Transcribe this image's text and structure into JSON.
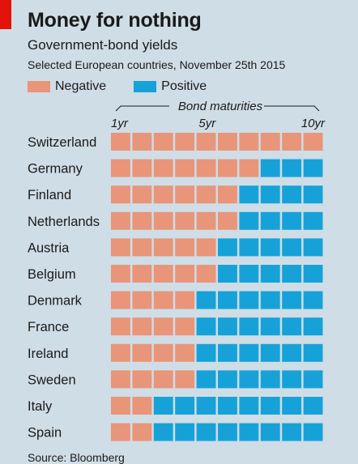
{
  "colors": {
    "negative": "#e8957a",
    "positive": "#16a2d8",
    "background": "#cfdde6",
    "accent": "#e3120b"
  },
  "header": {
    "title": "Money for nothing",
    "subtitle": "Government-bond yields",
    "description": "Selected European countries, November 25th 2015"
  },
  "legend": {
    "negative": "Negative",
    "positive": "Positive"
  },
  "source": "Source: Bloomberg",
  "chart_data": {
    "type": "heatmap",
    "xlabel": "Bond maturities",
    "x": [
      1,
      2,
      3,
      4,
      5,
      6,
      7,
      8,
      9,
      10
    ],
    "x_tick_labels": [
      {
        "x": 1,
        "label": "1yr"
      },
      {
        "x": 5,
        "label": "5yr"
      },
      {
        "x": 10,
        "label": "10yr"
      }
    ],
    "categories": [
      "Switzerland",
      "Germany",
      "Finland",
      "Netherlands",
      "Austria",
      "Belgium",
      "Denmark",
      "France",
      "Ireland",
      "Sweden",
      "Italy",
      "Spain"
    ],
    "negative_up_to_maturity_years": [
      10,
      7,
      6,
      6,
      5,
      5,
      4,
      4,
      4,
      4,
      2,
      2
    ],
    "legend": [
      "Negative",
      "Positive"
    ]
  }
}
